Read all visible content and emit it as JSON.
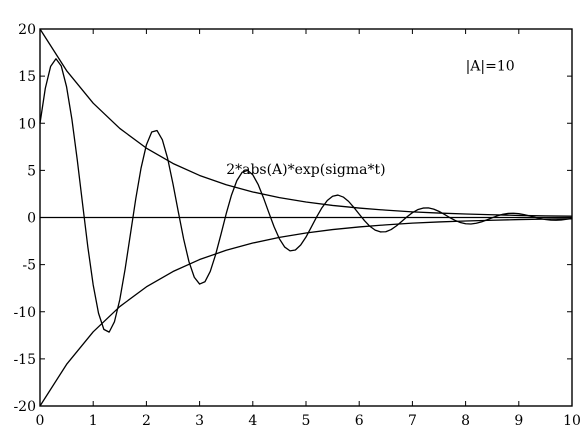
{
  "chart_data": {
    "type": "line",
    "title": "",
    "xlabel": "",
    "ylabel": "",
    "xlim": [
      0,
      10
    ],
    "ylim": [
      -20,
      20
    ],
    "x_ticks": [
      0,
      1,
      2,
      3,
      4,
      5,
      6,
      7,
      8,
      9,
      10
    ],
    "y_ticks": [
      20,
      15,
      10,
      5,
      0,
      -5,
      -10,
      -15,
      -20
    ],
    "grid": false,
    "legend": "none",
    "annotations": [
      {
        "text": "|A|=10",
        "x": 8.0,
        "y": 15.6
      },
      {
        "text": "2*abs(A)*exp(sigma*t)",
        "x": 3.5,
        "y": 4.6
      }
    ],
    "series": [
      {
        "x": [
          0,
          0.5,
          1,
          1.5,
          2,
          2.5,
          3,
          3.5,
          4,
          4.5,
          5,
          5.5,
          6,
          6.5,
          7,
          7.5,
          8,
          8.5,
          9,
          9.5,
          10
        ],
        "values": [
          20,
          15.58,
          12.13,
          9.45,
          7.36,
          5.73,
          4.46,
          3.48,
          2.71,
          2.11,
          1.64,
          1.28,
          1.0,
          0.78,
          0.6,
          0.47,
          0.37,
          0.29,
          0.22,
          0.17,
          0.14
        ]
      },
      {
        "x": [
          0,
          0.5,
          1,
          1.5,
          2,
          2.5,
          3,
          3.5,
          4,
          4.5,
          5,
          5.5,
          6,
          6.5,
          7,
          7.5,
          8,
          8.5,
          9,
          9.5,
          10
        ],
        "values": [
          -20,
          -15.58,
          -12.13,
          -9.45,
          -7.36,
          -5.73,
          -4.46,
          -3.48,
          -2.71,
          -2.11,
          -1.64,
          -1.28,
          -1.0,
          -0.78,
          -0.6,
          -0.47,
          -0.37,
          -0.29,
          -0.22,
          -0.17,
          -0.14
        ]
      },
      {
        "x": [
          0,
          0.1,
          0.2,
          0.3,
          0.4,
          0.5,
          0.6,
          0.7,
          0.8,
          0.9,
          1.0,
          1.1,
          1.2,
          1.3,
          1.4,
          1.5,
          1.6,
          1.7,
          1.8,
          1.9,
          2.0,
          2.1,
          2.2,
          2.3,
          2.4,
          2.5,
          2.6,
          2.7,
          2.8,
          2.9,
          3.0,
          3.1,
          3.2,
          3.3,
          3.4,
          3.5,
          3.6,
          3.7,
          3.8,
          3.9,
          4.0,
          4.1,
          4.2,
          4.3,
          4.4,
          4.5,
          4.6,
          4.7,
          4.8,
          4.9,
          5.0,
          5.1,
          5.2,
          5.3,
          5.4,
          5.5,
          5.6,
          5.7,
          5.8,
          5.9,
          6.0,
          6.1,
          6.2,
          6.3,
          6.4,
          6.5,
          6.6,
          6.7,
          6.8,
          6.9,
          7.0,
          7.1,
          7.2,
          7.3,
          7.4,
          7.5,
          7.6,
          7.7,
          7.8,
          7.9,
          8.0,
          8.1,
          8.2,
          8.3,
          8.4,
          8.5,
          8.6,
          8.7,
          8.8,
          8.9,
          9.0,
          9.1,
          9.2,
          9.3,
          9.4,
          9.5,
          9.6,
          9.7,
          9.8,
          9.9,
          10.0
        ],
        "values": [
          10.0,
          13.71,
          16.04,
          16.84,
          16.07,
          13.85,
          10.41,
          6.13,
          1.45,
          -3.16,
          -7.16,
          -10.16,
          -11.87,
          -12.16,
          -11.05,
          -8.71,
          -5.47,
          -1.75,
          1.98,
          5.26,
          7.71,
          9.07,
          9.23,
          8.24,
          6.25,
          3.56,
          0.6,
          -2.28,
          -4.69,
          -6.34,
          -7.06,
          -6.82,
          -5.72,
          -3.96,
          -1.82,
          0.4,
          2.39,
          3.91,
          4.8,
          5.0,
          4.53,
          3.51,
          2.1,
          0.54,
          -0.98,
          -2.26,
          -3.14,
          -3.54,
          -3.45,
          -2.92,
          -2.07,
          -1.02,
          0.06,
          1.04,
          1.8,
          2.26,
          2.38,
          2.17,
          1.71,
          1.07,
          0.36,
          -0.34,
          -0.93,
          -1.34,
          -1.53,
          -1.51,
          -1.28,
          -0.89,
          -0.41,
          0.08,
          0.51,
          0.83,
          1.0,
          1.02,
          0.89,
          0.65,
          0.34,
          0.0,
          -0.3,
          -0.53,
          -0.66,
          -0.69,
          -0.61,
          -0.46,
          -0.25,
          -0.03,
          0.18,
          0.34,
          0.43,
          0.45,
          0.41,
          0.31,
          0.17,
          0.03,
          -0.11,
          -0.21,
          -0.28,
          -0.29,
          -0.26,
          -0.19,
          -0.1
        ]
      },
      {
        "x": [
          0,
          10
        ],
        "values": [
          0,
          0
        ]
      }
    ]
  }
}
